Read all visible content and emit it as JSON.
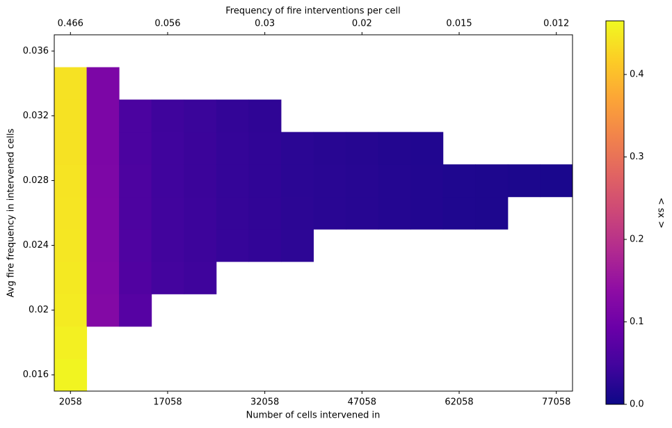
{
  "chart_data": {
    "type": "heatmap",
    "title": "Frequency of fire interventions per cell",
    "x_label": "Number of cells intervened in",
    "y_label": "Avg fire frequency in intervened cells",
    "colorbar_label": "< sx >",
    "colormap": "plasma",
    "xlim": [
      -442,
      79558
    ],
    "ylim": [
      0.015,
      0.037
    ],
    "clim": [
      0,
      0.465
    ],
    "xticks": [
      2058,
      17058,
      32058,
      47058,
      62058,
      77058
    ],
    "x2ticks": [
      {
        "value": 2058,
        "label": "0.466"
      },
      {
        "value": 17058,
        "label": "0.056"
      },
      {
        "value": 32058,
        "label": "0.03"
      },
      {
        "value": 47058,
        "label": "0.02"
      },
      {
        "value": 62058,
        "label": "0.015"
      },
      {
        "value": 77058,
        "label": "0.012"
      }
    ],
    "yticks": [
      0.016,
      0.02,
      0.024,
      0.028,
      0.032,
      0.036
    ],
    "cticks": [
      {
        "value": 0,
        "label": "0.0"
      },
      0.1,
      0.2,
      0.3,
      0.4
    ],
    "x": [
      2058,
      2058,
      2058,
      2058,
      2058,
      2058,
      2058,
      2058,
      2058,
      2058,
      7058,
      7058,
      7058,
      7058,
      7058,
      7058,
      7058,
      7058,
      12058,
      12058,
      12058,
      12058,
      12058,
      12058,
      12058,
      17058,
      17058,
      17058,
      17058,
      17058,
      17058,
      22058,
      22058,
      22058,
      22058,
      22058,
      22058,
      27058,
      27058,
      27058,
      27058,
      27058,
      32058,
      32058,
      32058,
      32058,
      32058,
      37058,
      37058,
      37058,
      37058,
      42058,
      42058,
      42058,
      47058,
      47058,
      47058,
      52058,
      52058,
      52058,
      57058,
      57058,
      57058,
      62058,
      62058,
      67058,
      67058,
      72058,
      77058
    ],
    "y": [
      0.016,
      0.018,
      0.02,
      0.022,
      0.024,
      0.026,
      0.028,
      0.03,
      0.032,
      0.034,
      0.02,
      0.022,
      0.024,
      0.026,
      0.028,
      0.03,
      0.032,
      0.034,
      0.02,
      0.022,
      0.024,
      0.026,
      0.028,
      0.03,
      0.032,
      0.022,
      0.024,
      0.026,
      0.028,
      0.03,
      0.032,
      0.022,
      0.024,
      0.026,
      0.028,
      0.03,
      0.032,
      0.024,
      0.026,
      0.028,
      0.03,
      0.032,
      0.024,
      0.026,
      0.028,
      0.03,
      0.032,
      0.024,
      0.026,
      0.028,
      0.03,
      0.026,
      0.028,
      0.03,
      0.026,
      0.028,
      0.03,
      0.026,
      0.028,
      0.03,
      0.026,
      0.028,
      0.03,
      0.026,
      0.028,
      0.026,
      0.028,
      0.028,
      0.028
    ],
    "values": [
      0.46,
      0.455,
      0.45,
      0.448,
      0.445,
      0.443,
      0.442,
      0.44,
      0.44,
      0.44,
      0.125,
      0.122,
      0.12,
      0.118,
      0.117,
      0.116,
      0.116,
      0.115,
      0.07,
      0.065,
      0.062,
      0.06,
      0.06,
      0.058,
      0.058,
      0.05,
      0.048,
      0.047,
      0.046,
      0.046,
      0.045,
      0.045,
      0.043,
      0.042,
      0.041,
      0.041,
      0.04,
      0.037,
      0.036,
      0.035,
      0.035,
      0.034,
      0.033,
      0.032,
      0.031,
      0.031,
      0.03,
      0.029,
      0.028,
      0.027,
      0.027,
      0.025,
      0.025,
      0.024,
      0.023,
      0.023,
      0.022,
      0.021,
      0.021,
      0.02,
      0.019,
      0.019,
      0.018,
      0.016,
      0.016,
      0.015,
      0.015,
      0.013,
      0.012
    ]
  }
}
